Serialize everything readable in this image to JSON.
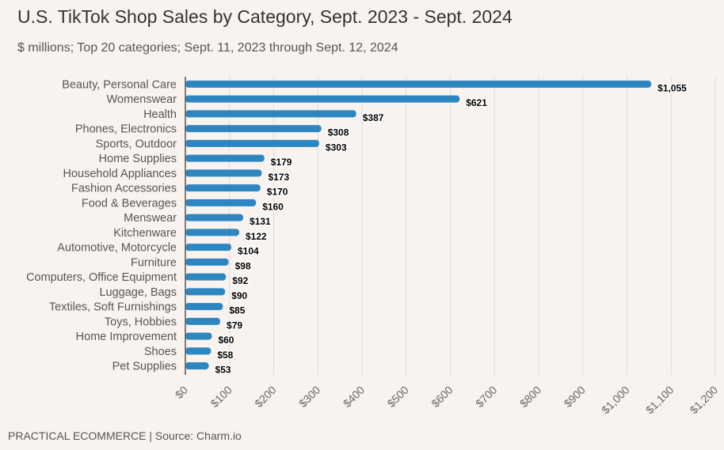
{
  "header": {
    "title": "U.S. TikTok Shop Sales by Category, Sept. 2023 - Sept. 2024",
    "subtitle": "$ millions; Top 20 categories; Sept. 11, 2023 through Sept. 12, 2024"
  },
  "footer": {
    "source": "PRACTICAL ECOMMERCE | Source: Charm.io"
  },
  "chart_data": {
    "type": "bar",
    "orientation": "horizontal",
    "title": "U.S. TikTok Shop Sales by Category, Sept. 2023 - Sept. 2024",
    "subtitle": "$ millions; Top 20 categories; Sept. 11, 2023 through Sept. 12, 2024",
    "xlabel": "",
    "ylabel": "",
    "categories": [
      "Beauty, Personal Care",
      "Womenswear",
      "Health",
      "Phones, Electronics",
      "Sports, Outdoor",
      "Home Supplies",
      "Household Appliances",
      "Fashion Accessories",
      "Food & Beverages",
      "Menswear",
      "Kitchenware",
      "Automotive, Motorcycle",
      "Furniture",
      "Computers, Office Equipment",
      "Luggage, Bags",
      "Textiles, Soft Furnishings",
      "Toys, Hobbies",
      "Home Improvement",
      "Shoes",
      "Pet Supplies"
    ],
    "values": [
      1055,
      621,
      387,
      308,
      303,
      179,
      173,
      170,
      160,
      131,
      122,
      104,
      98,
      92,
      90,
      85,
      79,
      60,
      58,
      53
    ],
    "value_labels": [
      "$1,055",
      "$621",
      "$387",
      "$308",
      "$303",
      "$179",
      "$173",
      "$170",
      "$160",
      "$131",
      "$122",
      "$104",
      "$98",
      "$92",
      "$90",
      "$85",
      "$79",
      "$60",
      "$58",
      "$53"
    ],
    "xlim": [
      0,
      1200
    ],
    "xticks": [
      0,
      100,
      200,
      300,
      400,
      500,
      600,
      700,
      800,
      900,
      1000,
      1100,
      1200
    ],
    "xtick_labels": [
      "$0",
      "$100",
      "$200",
      "$300",
      "$400",
      "$500",
      "$600",
      "$700",
      "$800",
      "$900",
      "$1,000",
      "$1,100",
      "$1,200"
    ],
    "bar_color": "#2e86c1",
    "grid": true
  }
}
